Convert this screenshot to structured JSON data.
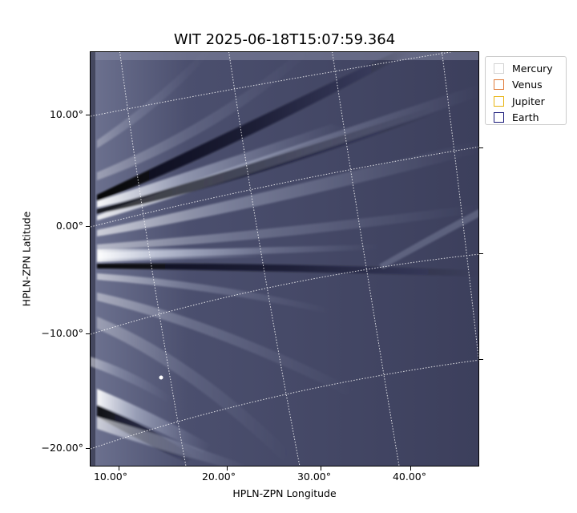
{
  "title": "WIT 2025-06-18T15:07:59.364",
  "axes": {
    "xlabel": "HPLN-ZPN Longitude",
    "ylabel": "HPLN-ZPN Latitude",
    "xticks": [
      "10.00°",
      "20.00°",
      "30.00°",
      "40.00°"
    ],
    "yticks": [
      "10.00°",
      "0.00°",
      "−10.00°",
      "−20.00°"
    ]
  },
  "legend": {
    "items": [
      {
        "label": "Mercury",
        "color": "#d3d3d3"
      },
      {
        "label": "Venus",
        "color": "#e07b39"
      },
      {
        "label": "Jupiter",
        "color": "#e8b410"
      },
      {
        "label": "Earth",
        "color": "#1a1a7a"
      }
    ]
  },
  "image": {
    "colormap": "bone",
    "background_color": "#3f4260"
  }
}
